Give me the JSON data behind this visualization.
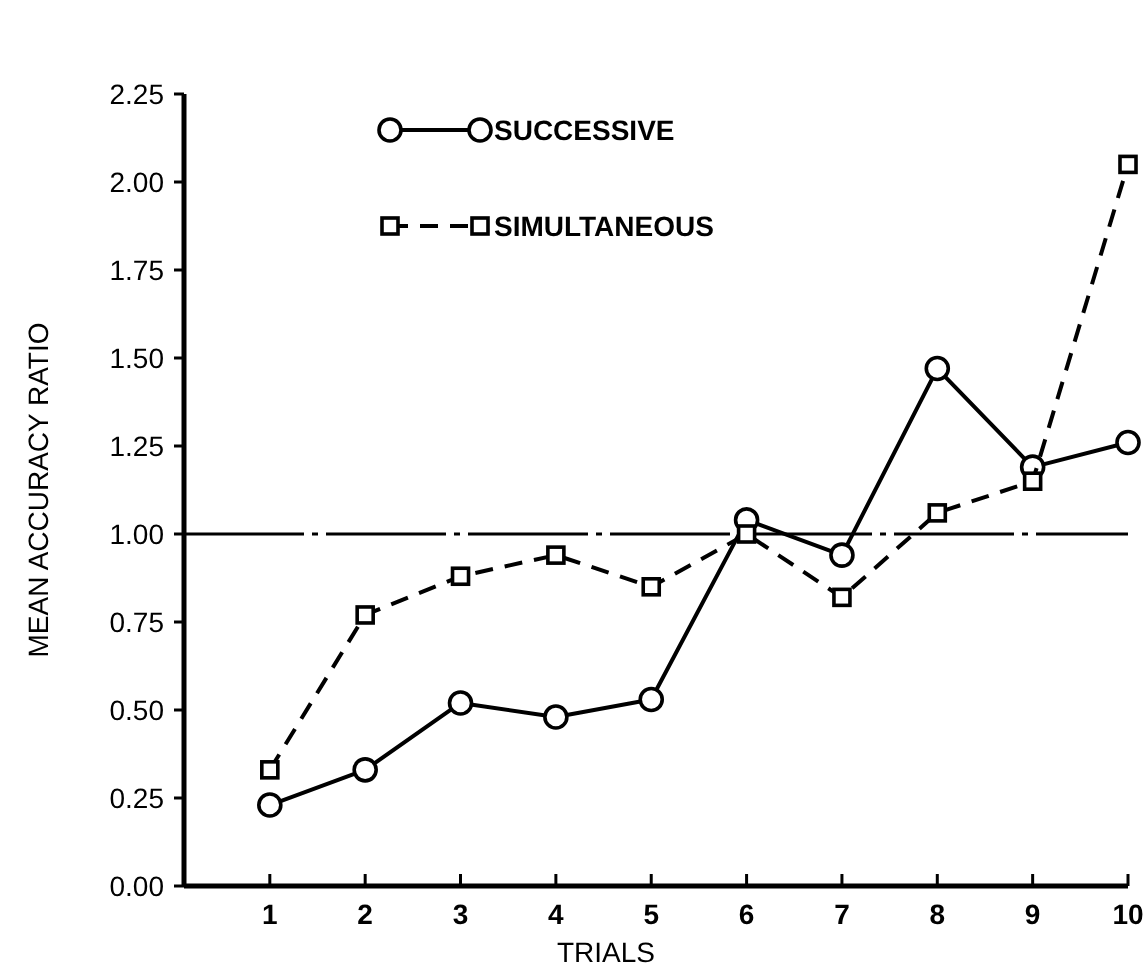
{
  "chart_data": {
    "type": "line",
    "xlabel": "TRIALS",
    "ylabel": "MEAN ACCURACY RATIO",
    "x": [
      1,
      2,
      3,
      4,
      5,
      6,
      7,
      8,
      9,
      10
    ],
    "xlim": [
      0.1,
      10
    ],
    "xticks": [
      1,
      2,
      3,
      4,
      5,
      6,
      7,
      8,
      9,
      10
    ],
    "ylim": [
      0,
      2.25
    ],
    "yticks": [
      {
        "value": 0,
        "label": "0.00"
      },
      {
        "value": 0.25,
        "label": "0.25"
      },
      {
        "value": 0.5,
        "label": "0.50"
      },
      {
        "value": 0.75,
        "label": "0.75"
      },
      {
        "value": 1,
        "label": "1.00"
      },
      {
        "value": 1.25,
        "label": "1.25"
      },
      {
        "value": 1.5,
        "label": "1.50"
      },
      {
        "value": 1.75,
        "label": "1.75"
      },
      {
        "value": 2,
        "label": "2.00"
      },
      {
        "value": 2.25,
        "label": "2.25"
      }
    ],
    "series": [
      {
        "name": "SUCCESSIVE",
        "color": "#000000",
        "marker": "circle",
        "line_style": "solid",
        "values": [
          0.23,
          0.33,
          0.52,
          0.48,
          0.53,
          1.04,
          0.94,
          1.47,
          1.19,
          1.26
        ]
      },
      {
        "name": "SIMULTANEOUS",
        "color": "#000000",
        "marker": "square",
        "line_style": "dashed",
        "values": [
          0.33,
          0.77,
          0.88,
          0.94,
          0.85,
          1.0,
          0.82,
          1.06,
          1.15,
          2.05
        ]
      }
    ],
    "ref_lines": [
      {
        "axis": "y",
        "value": 1,
        "color": "#000000",
        "line_style": "dashed"
      }
    ],
    "legend": "top",
    "grid": false
  }
}
